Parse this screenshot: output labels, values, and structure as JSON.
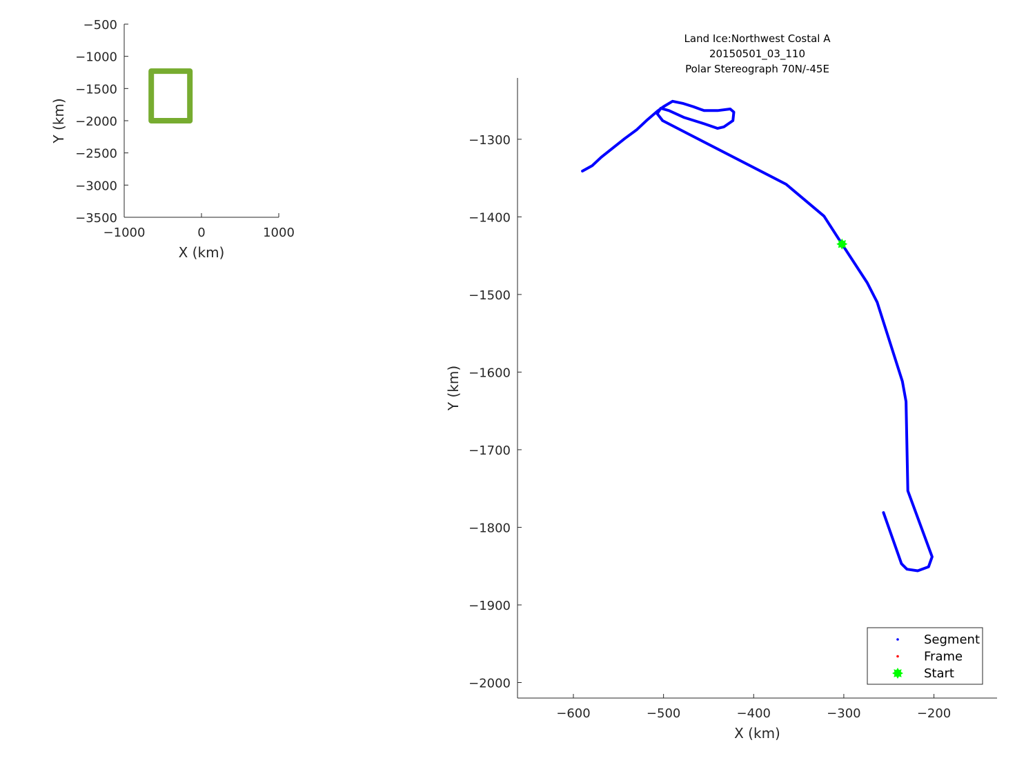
{
  "chart_data": [
    {
      "type": "line",
      "title": "",
      "xlabel": "X (km)",
      "ylabel": "Y (km)",
      "xlim": [
        -1000,
        1000
      ],
      "ylim": [
        -3500,
        -500
      ],
      "xticks": [
        -1000,
        0,
        1000
      ],
      "yticks": [
        -500,
        -1000,
        -1500,
        -2000,
        -2500,
        -3000,
        -3500
      ],
      "grid": false,
      "series": [
        {
          "color": "#77AC30",
          "x": [
            -650,
            -150,
            -150,
            -650,
            -650
          ],
          "y": [
            -1230,
            -1230,
            -2000,
            -2000,
            -1230
          ]
        }
      ]
    },
    {
      "type": "line",
      "title": [
        "Land Ice:Northwest Costal A",
        "20150501_03_110",
        "Polar Stereograph 70N/-45E"
      ],
      "xlabel": "X (km)",
      "ylabel": "Y (km)",
      "xlim": [
        -662,
        -130
      ],
      "ylim": [
        -2020,
        -1221
      ],
      "xticks": [
        -600,
        -500,
        -400,
        -300,
        -200
      ],
      "yticks": [
        -1300,
        -1400,
        -1500,
        -1600,
        -1700,
        -1800,
        -1900,
        -2000
      ],
      "grid": false,
      "legend_position": "bottom-right",
      "series": [
        {
          "name": "Segment",
          "color": "#0000FF",
          "x": [
            -590,
            -579,
            -569,
            -556,
            -543,
            -530,
            -519,
            -507,
            -500,
            -490,
            -478,
            -467,
            -455,
            -440,
            -426,
            -422,
            -423,
            -433,
            -440,
            -455,
            -477,
            -494,
            -503,
            -507,
            -501,
            -471,
            -364,
            -322,
            -302,
            -274,
            -263,
            -235,
            -231,
            -229,
            -202,
            -206,
            -218,
            -230,
            -236,
            -256
          ],
          "y": [
            -1341,
            -1334,
            -1323,
            -1311,
            -1299,
            -1288,
            -1276,
            -1264,
            -1258,
            -1251,
            -1254,
            -1258,
            -1263,
            -1263,
            -1261,
            -1265,
            -1276,
            -1284,
            -1286,
            -1280,
            -1272,
            -1263,
            -1260,
            -1267,
            -1276,
            -1294,
            -1358,
            -1399,
            -1435,
            -1485,
            -1510,
            -1612,
            -1638,
            -1753,
            -1838,
            -1851,
            -1856,
            -1854,
            -1847,
            -1781
          ]
        },
        {
          "name": "Frame",
          "color": "#FF0000",
          "x": [],
          "y": []
        },
        {
          "name": "Start",
          "color": "#00FF00",
          "marker": "star",
          "x": [
            -302
          ],
          "y": [
            -1435
          ]
        }
      ]
    }
  ]
}
